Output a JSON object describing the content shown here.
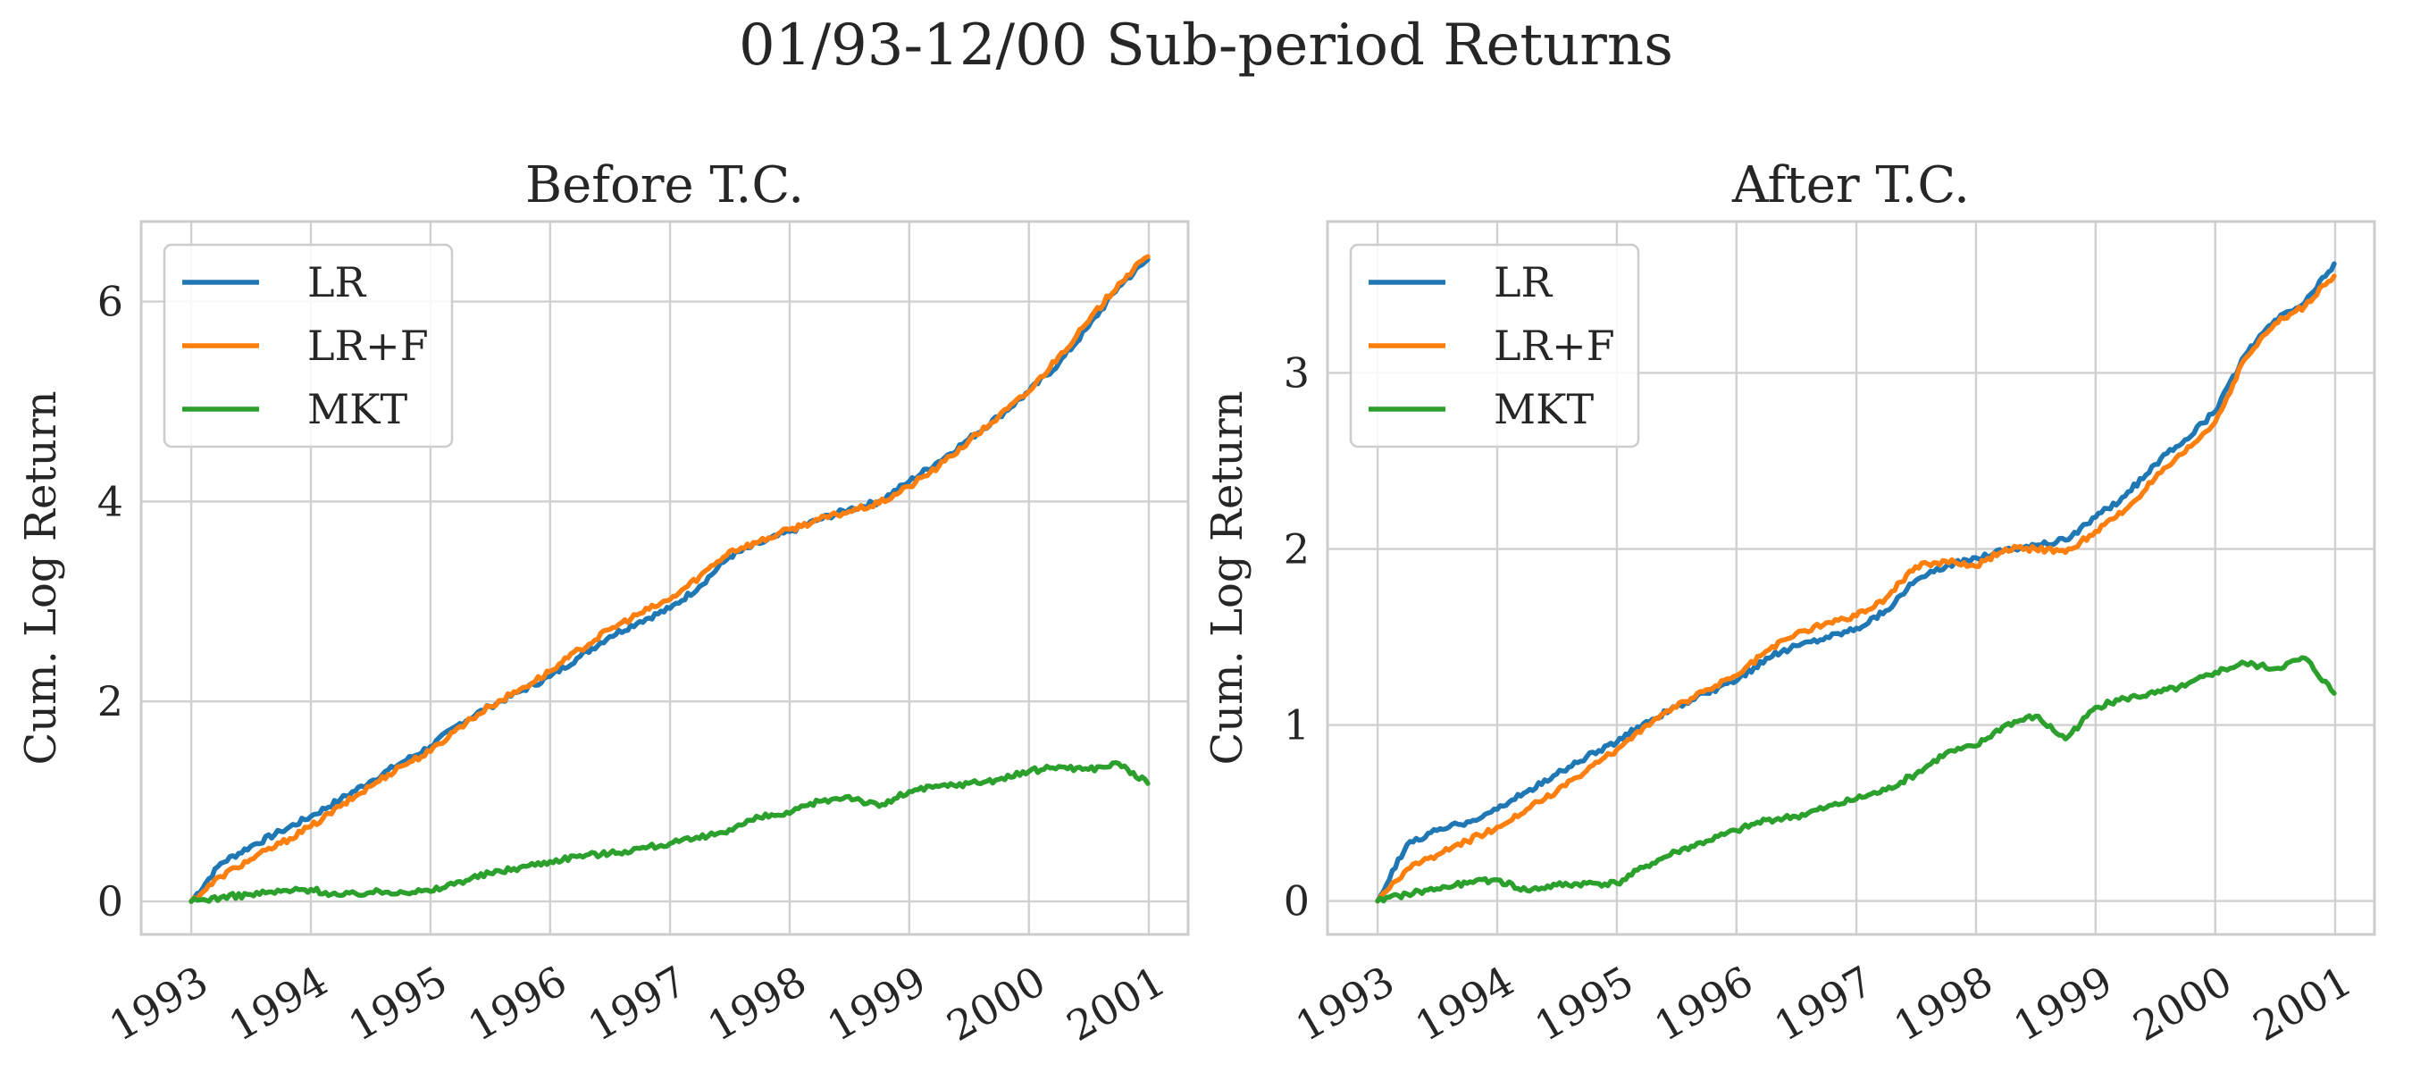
{
  "figure": {
    "suptitle": "01/93-12/00 Sub-period Returns"
  },
  "colors": {
    "LR": "#1f77b4",
    "LR+F": "#ff7f0e",
    "MKT": "#2ca02c",
    "grid": "#d0d0d0",
    "frame": "#cccccc"
  },
  "chart_data": [
    {
      "type": "line",
      "title": "Before T.C.",
      "xlabel": "",
      "ylabel": "Cum. Log Return",
      "xlim": [
        "1992-08-01",
        "2001-05-01"
      ],
      "ylim": [
        -0.33,
        6.8
      ],
      "x_ticks": [
        "1993",
        "1994",
        "1995",
        "1996",
        "1997",
        "1998",
        "1999",
        "2000",
        "2001"
      ],
      "y_ticks": [
        0,
        2,
        4,
        6
      ],
      "grid": true,
      "legend": "top-left",
      "series": [
        {
          "name": "LR",
          "x": [
            "1993-01-01",
            "1993-04-01",
            "1993-07-01",
            "1993-10-01",
            "1994-01-01",
            "1994-04-01",
            "1994-07-01",
            "1994-10-01",
            "1995-01-01",
            "1995-04-01",
            "1995-07-01",
            "1995-10-01",
            "1996-01-01",
            "1996-04-01",
            "1996-07-01",
            "1996-10-01",
            "1997-01-01",
            "1997-04-01",
            "1997-07-01",
            "1997-10-01",
            "1998-01-01",
            "1998-04-01",
            "1998-07-01",
            "1998-10-01",
            "1999-01-01",
            "1999-04-01",
            "1999-07-01",
            "1999-10-01",
            "2000-01-01",
            "2000-04-01",
            "2000-07-01",
            "2000-10-01",
            "2000-12-29"
          ],
          "values": [
            0.0,
            0.38,
            0.55,
            0.7,
            0.85,
            1.02,
            1.2,
            1.38,
            1.55,
            1.78,
            1.95,
            2.1,
            2.25,
            2.45,
            2.65,
            2.8,
            2.93,
            3.15,
            3.45,
            3.58,
            3.7,
            3.82,
            3.92,
            4.0,
            4.2,
            4.4,
            4.62,
            4.85,
            5.1,
            5.38,
            5.75,
            6.15,
            6.42
          ]
        },
        {
          "name": "LR+F",
          "x": [
            "1993-01-01",
            "1993-04-01",
            "1993-07-01",
            "1993-10-01",
            "1994-01-01",
            "1994-04-01",
            "1994-07-01",
            "1994-10-01",
            "1995-01-01",
            "1995-04-01",
            "1995-07-01",
            "1995-10-01",
            "1996-01-01",
            "1996-04-01",
            "1996-07-01",
            "1996-10-01",
            "1997-01-01",
            "1997-04-01",
            "1997-07-01",
            "1997-10-01",
            "1998-01-01",
            "1998-04-01",
            "1998-07-01",
            "1998-10-01",
            "1999-01-01",
            "1999-04-01",
            "1999-07-01",
            "1999-10-01",
            "2000-01-01",
            "2000-04-01",
            "2000-07-01",
            "2000-10-01",
            "2000-12-29"
          ],
          "values": [
            0.0,
            0.25,
            0.42,
            0.58,
            0.75,
            0.95,
            1.15,
            1.35,
            1.5,
            1.75,
            1.95,
            2.12,
            2.3,
            2.52,
            2.72,
            2.88,
            3.02,
            3.25,
            3.5,
            3.6,
            3.72,
            3.82,
            3.9,
            3.98,
            4.15,
            4.35,
            4.6,
            4.85,
            5.1,
            5.45,
            5.8,
            6.18,
            6.45
          ]
        },
        {
          "name": "MKT",
          "x": [
            "1993-01-01",
            "1993-04-01",
            "1993-07-01",
            "1993-10-01",
            "1994-01-01",
            "1994-04-01",
            "1994-07-01",
            "1994-10-01",
            "1995-01-01",
            "1995-04-01",
            "1995-07-01",
            "1995-10-01",
            "1996-01-01",
            "1996-04-01",
            "1996-07-01",
            "1996-10-01",
            "1997-01-01",
            "1997-04-01",
            "1997-07-01",
            "1997-10-01",
            "1998-01-01",
            "1998-04-01",
            "1998-07-01",
            "1998-10-01",
            "1999-01-01",
            "1999-04-01",
            "1999-07-01",
            "1999-10-01",
            "2000-01-01",
            "2000-04-01",
            "2000-07-01",
            "2000-10-01",
            "2000-12-29"
          ],
          "values": [
            0.0,
            0.04,
            0.07,
            0.1,
            0.12,
            0.06,
            0.09,
            0.1,
            0.1,
            0.2,
            0.28,
            0.34,
            0.4,
            0.46,
            0.48,
            0.53,
            0.58,
            0.63,
            0.72,
            0.84,
            0.88,
            1.0,
            1.05,
            0.95,
            1.1,
            1.15,
            1.18,
            1.22,
            1.3,
            1.35,
            1.32,
            1.38,
            1.18
          ]
        }
      ]
    },
    {
      "type": "line",
      "title": "After T.C.",
      "xlabel": "",
      "ylabel": "Cum. Log Return",
      "xlim": [
        "1992-08-01",
        "2001-05-01"
      ],
      "ylim": [
        -0.19,
        3.86
      ],
      "x_ticks": [
        "1993",
        "1994",
        "1995",
        "1996",
        "1997",
        "1998",
        "1999",
        "2000",
        "2001"
      ],
      "y_ticks": [
        0,
        1,
        2,
        3
      ],
      "grid": true,
      "legend": "top-left",
      "series": [
        {
          "name": "LR",
          "x": [
            "1993-01-01",
            "1993-04-01",
            "1993-07-01",
            "1993-10-01",
            "1994-01-01",
            "1994-04-01",
            "1994-07-01",
            "1994-10-01",
            "1995-01-01",
            "1995-04-01",
            "1995-07-01",
            "1995-10-01",
            "1996-01-01",
            "1996-04-01",
            "1996-07-01",
            "1996-10-01",
            "1997-01-01",
            "1997-04-01",
            "1997-07-01",
            "1997-10-01",
            "1998-01-01",
            "1998-04-01",
            "1998-07-01",
            "1998-10-01",
            "1999-01-01",
            "1999-04-01",
            "1999-07-01",
            "1999-10-01",
            "2000-01-01",
            "2000-04-01",
            "2000-07-01",
            "2000-10-01",
            "2000-12-29"
          ],
          "values": [
            0.0,
            0.32,
            0.4,
            0.45,
            0.52,
            0.62,
            0.72,
            0.82,
            0.9,
            1.02,
            1.1,
            1.18,
            1.25,
            1.38,
            1.45,
            1.5,
            1.55,
            1.65,
            1.82,
            1.9,
            1.95,
            2.0,
            2.02,
            2.05,
            2.18,
            2.3,
            2.48,
            2.62,
            2.78,
            3.1,
            3.3,
            3.4,
            3.62
          ]
        },
        {
          "name": "LR+F",
          "x": [
            "1993-01-01",
            "1993-04-01",
            "1993-07-01",
            "1993-10-01",
            "1994-01-01",
            "1994-04-01",
            "1994-07-01",
            "1994-10-01",
            "1995-01-01",
            "1995-04-01",
            "1995-07-01",
            "1995-10-01",
            "1996-01-01",
            "1996-04-01",
            "1996-07-01",
            "1996-10-01",
            "1997-01-01",
            "1997-04-01",
            "1997-07-01",
            "1997-10-01",
            "1998-01-01",
            "1998-04-01",
            "1998-07-01",
            "1998-10-01",
            "1999-01-01",
            "1999-04-01",
            "1999-07-01",
            "1999-10-01",
            "2000-01-01",
            "2000-04-01",
            "2000-07-01",
            "2000-10-01",
            "2000-12-29"
          ],
          "values": [
            0.0,
            0.18,
            0.26,
            0.34,
            0.42,
            0.52,
            0.62,
            0.74,
            0.86,
            1.0,
            1.1,
            1.2,
            1.28,
            1.42,
            1.52,
            1.58,
            1.62,
            1.72,
            1.9,
            1.93,
            1.9,
            2.0,
            2.0,
            1.98,
            2.1,
            2.22,
            2.4,
            2.55,
            2.72,
            3.08,
            3.28,
            3.38,
            3.55
          ]
        },
        {
          "name": "MKT",
          "x": [
            "1993-01-01",
            "1993-04-01",
            "1993-07-01",
            "1993-10-01",
            "1994-01-01",
            "1994-04-01",
            "1994-07-01",
            "1994-10-01",
            "1995-01-01",
            "1995-04-01",
            "1995-07-01",
            "1995-10-01",
            "1996-01-01",
            "1996-04-01",
            "1996-07-01",
            "1996-10-01",
            "1997-01-01",
            "1997-04-01",
            "1997-07-01",
            "1997-10-01",
            "1998-01-01",
            "1998-04-01",
            "1998-07-01",
            "1998-10-01",
            "1999-01-01",
            "1999-04-01",
            "1999-07-01",
            "1999-10-01",
            "2000-01-01",
            "2000-04-01",
            "2000-07-01",
            "2000-10-01",
            "2000-12-29"
          ],
          "values": [
            0.0,
            0.04,
            0.07,
            0.1,
            0.12,
            0.06,
            0.09,
            0.1,
            0.1,
            0.2,
            0.28,
            0.34,
            0.4,
            0.46,
            0.48,
            0.53,
            0.58,
            0.63,
            0.72,
            0.84,
            0.88,
            1.0,
            1.05,
            0.92,
            1.1,
            1.15,
            1.18,
            1.22,
            1.3,
            1.35,
            1.32,
            1.38,
            1.18
          ]
        }
      ]
    }
  ]
}
